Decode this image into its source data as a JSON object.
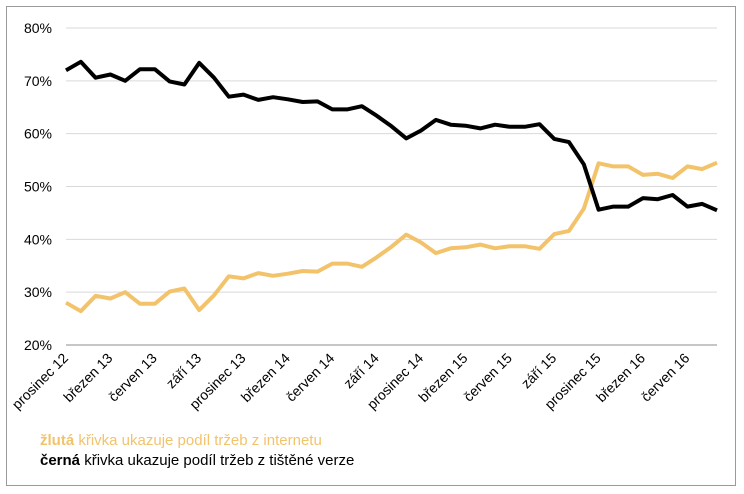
{
  "chart_data": {
    "type": "line",
    "y_ticks": [
      "20%",
      "30%",
      "40%",
      "50%",
      "60%",
      "70%",
      "80%"
    ],
    "ylim": [
      20,
      80
    ],
    "x_tick_labels": [
      "prosinec 12",
      "březen 13",
      "červen 13",
      "září 13",
      "prosinec 13",
      "březen 14",
      "červen 14",
      "září 14",
      "prosinec 14",
      "březen 15",
      "červen 15",
      "září 15",
      "prosinec 15",
      "březen 16",
      "červen 16"
    ],
    "x_tick_every": 3,
    "grid": "horizontal",
    "colors": {
      "yellow": "#f2c36b",
      "black": "#000000",
      "grid": "#d9d9d9",
      "axis": "#8c8c8c"
    },
    "series": [
      {
        "key": "internet",
        "color": "#f2c36b",
        "values": [
          28.0,
          26.4,
          29.3,
          28.8,
          30.0,
          27.8,
          27.8,
          30.1,
          30.7,
          26.6,
          29.4,
          33.0,
          32.6,
          33.6,
          33.1,
          33.5,
          34.0,
          33.9,
          35.4,
          35.4,
          34.8,
          36.6,
          38.6,
          40.9,
          39.4,
          37.4,
          38.3,
          38.5,
          39.0,
          38.3,
          38.7,
          38.7,
          38.2,
          41.0,
          41.6,
          45.8,
          54.4,
          53.8,
          53.8,
          52.2,
          52.4,
          51.6,
          53.8,
          53.3,
          54.5
        ]
      },
      {
        "key": "print",
        "color": "#000000",
        "values": [
          72.0,
          73.6,
          70.6,
          71.2,
          70.0,
          72.2,
          72.2,
          69.9,
          69.3,
          73.4,
          70.6,
          67.0,
          67.4,
          66.4,
          66.9,
          66.5,
          66.0,
          66.1,
          64.6,
          64.6,
          65.2,
          63.4,
          61.4,
          59.1,
          60.6,
          62.6,
          61.7,
          61.5,
          61.0,
          61.7,
          61.3,
          61.3,
          61.8,
          59.0,
          58.4,
          54.2,
          45.6,
          46.2,
          46.2,
          47.8,
          47.6,
          48.4,
          46.2,
          46.7,
          45.5
        ]
      }
    ]
  },
  "legend": {
    "yellow_bold": "žlutá",
    "yellow_text": " křivka ukazuje podíl tržeb z internetu",
    "black_bold": "černá",
    "black_text": " křivka ukazuje podíl tržeb z tištěné verze"
  }
}
